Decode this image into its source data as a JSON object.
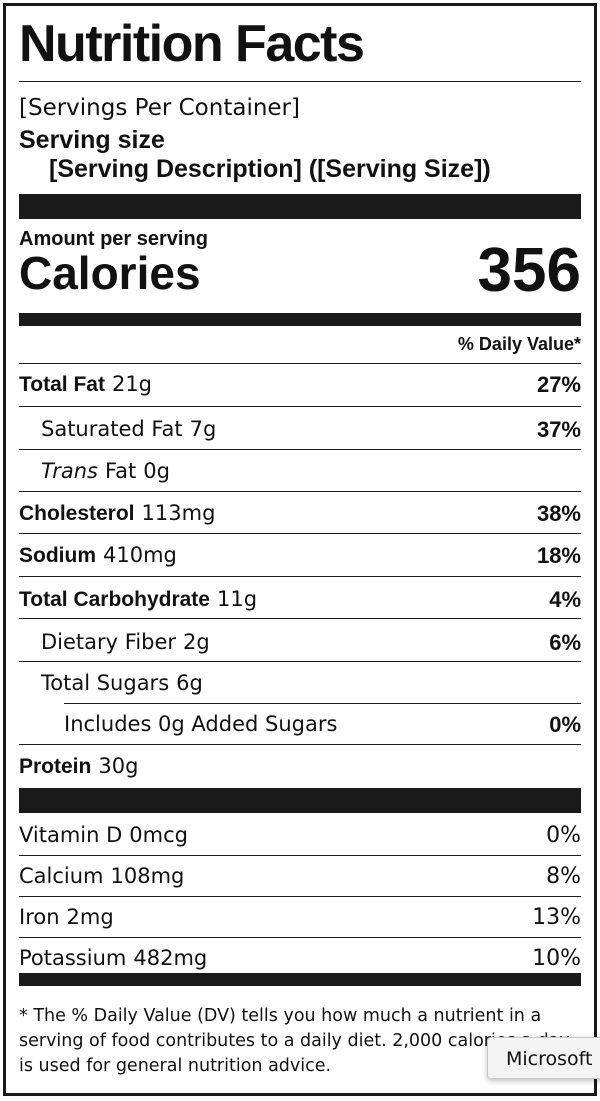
{
  "title": "Nutrition Facts",
  "servings_per_container": "[Servings Per Container]",
  "serving_size_label": "Serving size",
  "serving_description": "[Serving Description] ([Serving Size])",
  "amount_per_serving": "Amount per serving",
  "calories_label": "Calories",
  "calories_value": "356",
  "daily_value_header": "% Daily Value*",
  "nutrients": [
    {
      "name": "Total Fat",
      "amount": "21g",
      "dv": "27%"
    },
    {
      "name": "Saturated Fat",
      "amount": "7g",
      "dv": "37%"
    },
    {
      "name_italic": "Trans",
      "name": "Fat",
      "amount": "0g",
      "dv": ""
    },
    {
      "name": "Cholesterol",
      "amount": "113mg",
      "dv": "38%"
    },
    {
      "name": "Sodium",
      "amount": "410mg",
      "dv": "18%"
    },
    {
      "name": "Total Carbohydrate",
      "amount": "11g",
      "dv": "4%"
    },
    {
      "name": "Dietary Fiber",
      "amount": "2g",
      "dv": "6%"
    },
    {
      "name": "Total Sugars",
      "amount": "6g",
      "dv": ""
    },
    {
      "name": "Includes 0g Added Sugars",
      "amount": "",
      "dv": "0%"
    },
    {
      "name": "Protein",
      "amount": "30g",
      "dv": ""
    }
  ],
  "vitamins": [
    {
      "name": "Vitamin D",
      "amount": "0mcg",
      "dv": "0%"
    },
    {
      "name": "Calcium",
      "amount": "108mg",
      "dv": "8%"
    },
    {
      "name": "Iron",
      "amount": "2mg",
      "dv": "13%"
    },
    {
      "name": "Potassium",
      "amount": "482mg",
      "dv": "10%"
    }
  ],
  "footnote": "* The % Daily Value (DV) tells you how much a nutrient in a serving of food contributes to a daily diet. 2,000 calories a day is used for general nutrition advice.",
  "tooltip": {
    "label": "Microsoft"
  }
}
